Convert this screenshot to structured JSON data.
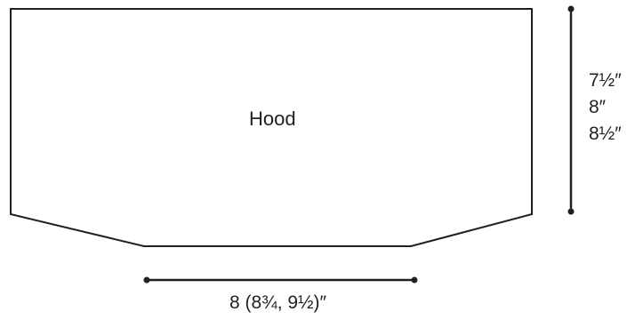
{
  "piece": {
    "label": "Hood"
  },
  "height_measurement": {
    "sizes": [
      "7½″",
      "8″",
      "8½″"
    ]
  },
  "width_measurement": {
    "text": "8 (8¾, 9½)″"
  },
  "colors": {
    "stroke": "#231f20",
    "background": "#ffffff"
  }
}
